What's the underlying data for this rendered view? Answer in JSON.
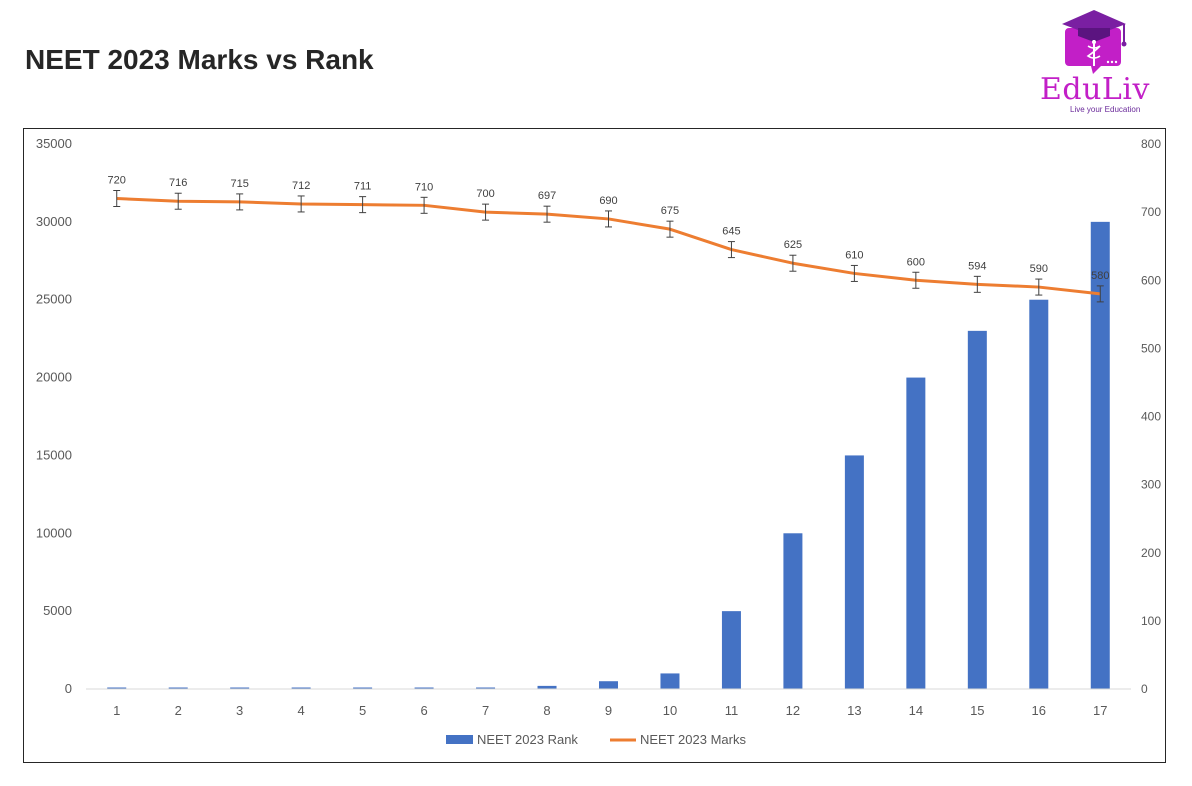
{
  "header": {
    "title": "NEET 2023 Marks vs Rank"
  },
  "logo": {
    "name": "EduLiv",
    "tagline": "Live your Education"
  },
  "chart_data": {
    "type": "bar",
    "categories": [
      "1",
      "2",
      "3",
      "4",
      "5",
      "6",
      "7",
      "8",
      "9",
      "10",
      "11",
      "12",
      "13",
      "14",
      "15",
      "16",
      "17"
    ],
    "series": [
      {
        "name": "NEET 2023 Rank",
        "type": "bar",
        "axis": "left",
        "color": "#4472c4",
        "values": [
          1,
          2,
          3,
          4,
          6,
          8,
          50,
          200,
          500,
          1000,
          5000,
          10000,
          15000,
          20000,
          23000,
          25000,
          30000
        ]
      },
      {
        "name": "NEET 2023 Marks",
        "type": "line",
        "axis": "right",
        "color": "#ed7d31",
        "values": [
          720,
          716,
          715,
          712,
          711,
          710,
          700,
          697,
          690,
          675,
          645,
          625,
          610,
          600,
          594,
          590,
          580
        ],
        "data_labels": [
          "720",
          "716",
          "715",
          "712",
          "711",
          "710",
          "700",
          "697",
          "690",
          "675",
          "645",
          "625",
          "610",
          "600",
          "594",
          "590",
          "580"
        ],
        "error_bars": true
      }
    ],
    "y_left": {
      "lim": [
        0,
        35000
      ],
      "ticks": [
        "0",
        "5000",
        "10000",
        "15000",
        "20000",
        "25000",
        "30000",
        "35000"
      ]
    },
    "y_right": {
      "lim": [
        0,
        800
      ],
      "ticks": [
        "0",
        "100",
        "200",
        "300",
        "400",
        "500",
        "600",
        "700",
        "800"
      ]
    },
    "grid": false,
    "legend_position": "bottom",
    "title": "",
    "xlabel": "",
    "ylabel": ""
  }
}
